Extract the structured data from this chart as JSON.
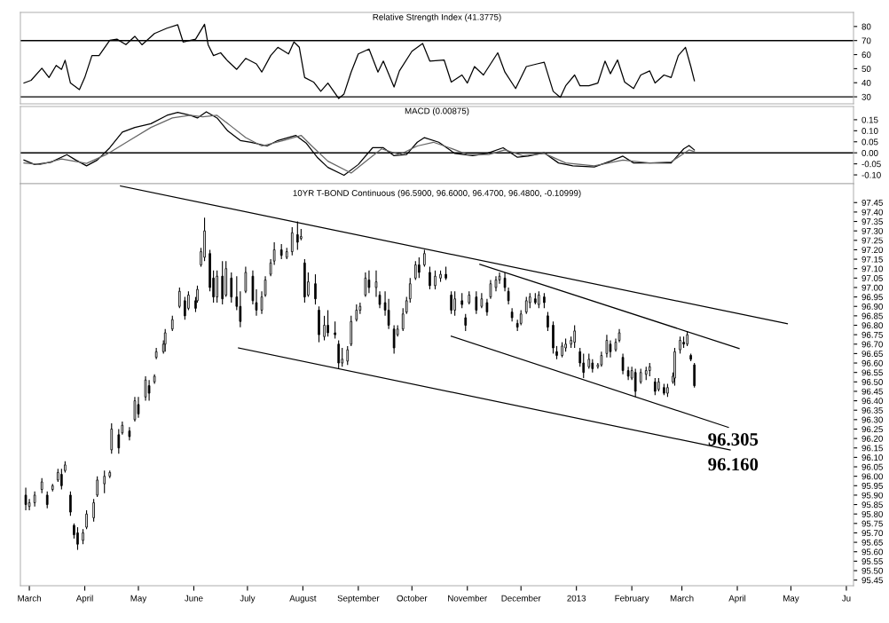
{
  "chart_data": [
    {
      "type": "line",
      "title": "Relative Strength Index (41.3775)",
      "tick_labels": "y",
      "xlim": [
        "2012-02-25",
        "2013-06-05"
      ],
      "ylim": [
        25,
        90
      ],
      "yticks": [
        30,
        40,
        50,
        60,
        70,
        80
      ],
      "ref_lines": [
        {
          "axis": "y",
          "value": 70,
          "color": "#000000"
        },
        {
          "axis": "y",
          "value": 30,
          "color": "#000000"
        }
      ],
      "x": [
        "2012-02-27",
        "2012-03-02",
        "2012-03-08",
        "2012-03-12",
        "2012-03-16",
        "2012-03-19",
        "2012-03-21",
        "2012-03-24",
        "2012-03-29",
        "2012-04-01",
        "2012-04-05",
        "2012-04-09",
        "2012-04-15",
        "2012-04-19",
        "2012-04-24",
        "2012-04-29",
        "2012-05-03",
        "2012-05-10",
        "2012-05-17",
        "2012-05-23",
        "2012-05-26",
        "2012-06-02",
        "2012-06-07",
        "2012-06-09",
        "2012-06-12",
        "2012-06-16",
        "2012-06-20",
        "2012-06-25",
        "2012-06-30",
        "2012-07-06",
        "2012-07-09",
        "2012-07-14",
        "2012-07-18",
        "2012-07-24",
        "2012-07-27",
        "2012-07-30",
        "2012-08-02",
        "2012-08-07",
        "2012-08-11",
        "2012-08-15",
        "2012-08-21",
        "2012-08-24",
        "2012-08-28",
        "2012-09-01",
        "2012-09-07",
        "2012-09-12",
        "2012-09-15",
        "2012-09-21",
        "2012-09-24",
        "2012-10-01",
        "2012-10-07",
        "2012-10-11",
        "2012-10-19",
        "2012-10-23",
        "2012-10-29",
        "2012-11-01",
        "2012-11-05",
        "2012-11-10",
        "2012-11-18",
        "2012-11-22",
        "2012-11-28",
        "2012-12-04",
        "2012-12-10",
        "2012-12-14",
        "2012-12-19",
        "2012-12-23",
        "2012-12-26",
        "2012-12-31",
        "2013-01-03",
        "2013-01-08",
        "2013-01-13",
        "2013-01-17",
        "2013-01-20",
        "2013-01-24",
        "2013-01-28",
        "2013-02-02",
        "2013-02-06",
        "2013-02-11",
        "2013-02-14",
        "2013-02-19",
        "2013-02-23",
        "2013-02-27",
        "2013-03-03",
        "2013-03-06",
        "2013-03-08"
      ],
      "series": [
        {
          "color": "#000000",
          "values": [
            39.8,
            41.7,
            50.3,
            43.7,
            52.3,
            49.5,
            56,
            39.8,
            35.1,
            43.7,
            59.3,
            59.3,
            70.2,
            71,
            67.1,
            73,
            67,
            75,
            78.8,
            81.2,
            69,
            71,
            81.6,
            67,
            59.3,
            61.3,
            55.4,
            49.5,
            57.3,
            53.4,
            47.6,
            59.3,
            65.2,
            60.5,
            69,
            65.2,
            43.7,
            40.5,
            33.9,
            39.8,
            28.8,
            32,
            47.6,
            60.5,
            64,
            47.6,
            55.4,
            37,
            48.4,
            62.4,
            67.9,
            55.4,
            56.2,
            40.5,
            45.5,
            39.8,
            51.5,
            45.5,
            61.3,
            47.6,
            35.9,
            51.5,
            53.4,
            54.6,
            33.9,
            29.6,
            37.8,
            45.5,
            37.8,
            37.8,
            39.8,
            55.4,
            46.4,
            56.2,
            40.5,
            35.9,
            45.5,
            48.4,
            39.8,
            45.5,
            43.7,
            59.3,
            65.2,
            51.5,
            41.4
          ]
        }
      ]
    },
    {
      "type": "line",
      "title": "MACD (0.00875)",
      "tick_labels": "y",
      "xlim": [
        "2012-02-25",
        "2013-06-05"
      ],
      "ylim": [
        -0.14,
        0.21
      ],
      "yticks": [
        {
          "value": -0.1,
          "label": "-0.10"
        },
        {
          "value": -0.05,
          "label": "-0.05"
        },
        {
          "value": 0,
          "label": "0.00"
        },
        {
          "value": 0.05,
          "label": "0.05"
        },
        {
          "value": 0.1,
          "label": "0.10"
        },
        {
          "value": 0.15,
          "label": "0.15"
        }
      ],
      "ref_lines": [
        {
          "axis": "y",
          "value": 0,
          "color": "#000000"
        }
      ],
      "series": [
        {
          "color": "#000000",
          "x": [
            "2012-02-27",
            "2012-03-04",
            "2012-03-13",
            "2012-03-22",
            "2012-03-27",
            "2012-04-02",
            "2012-04-08",
            "2012-04-15",
            "2012-04-22",
            "2012-04-29",
            "2012-05-08",
            "2012-05-17",
            "2012-05-23",
            "2012-05-30",
            "2012-06-03",
            "2012-06-08",
            "2012-06-14",
            "2012-06-20",
            "2012-06-27",
            "2012-07-03",
            "2012-07-12",
            "2012-07-18",
            "2012-07-28",
            "2012-08-03",
            "2012-08-09",
            "2012-08-15",
            "2012-08-24",
            "2012-09-01",
            "2012-09-09",
            "2012-09-15",
            "2012-09-21",
            "2012-09-28",
            "2012-10-04",
            "2012-10-08",
            "2012-10-16",
            "2012-10-25",
            "2012-11-04",
            "2012-11-12",
            "2012-11-21",
            "2012-11-29",
            "2012-12-05",
            "2012-12-14",
            "2012-12-22",
            "2012-12-30",
            "2013-01-11",
            "2013-01-20",
            "2013-01-27",
            "2013-02-02",
            "2013-02-11",
            "2013-02-23",
            "2013-03-02",
            "2013-03-05",
            "2013-03-08"
          ],
          "values": [
            -0.033,
            -0.053,
            -0.043,
            -0.008,
            -0.033,
            -0.059,
            -0.033,
            0.023,
            0.094,
            0.115,
            0.132,
            0.17,
            0.183,
            0.17,
            0.158,
            0.186,
            0.158,
            0.099,
            0.056,
            0.048,
            0.031,
            0.056,
            0.079,
            0.043,
            -0.02,
            -0.066,
            -0.102,
            -0.053,
            0.023,
            0.023,
            -0.013,
            -0.008,
            0.048,
            0.069,
            0.048,
            -0.003,
            -0.013,
            -0.003,
            0.023,
            -0.02,
            -0.015,
            0.0,
            -0.046,
            -0.059,
            -0.064,
            -0.038,
            -0.015,
            -0.046,
            -0.046,
            -0.046,
            0.018,
            0.033,
            0.013
          ]
        },
        {
          "color": "#666666",
          "x": [
            "2012-02-27",
            "2012-03-07",
            "2012-03-19",
            "2012-04-02",
            "2012-04-13",
            "2012-04-26",
            "2012-05-08",
            "2012-05-20",
            "2012-05-30",
            "2012-06-06",
            "2012-06-14",
            "2012-06-22",
            "2012-06-30",
            "2012-07-09",
            "2012-07-21",
            "2012-07-31",
            "2012-08-06",
            "2012-08-15",
            "2012-08-28",
            "2012-09-06",
            "2012-09-14",
            "2012-09-24",
            "2012-10-04",
            "2012-10-13",
            "2012-10-22",
            "2012-11-01",
            "2012-11-13",
            "2012-11-22",
            "2012-12-02",
            "2012-12-14",
            "2012-12-26",
            "2013-01-11",
            "2013-01-27",
            "2013-02-11",
            "2013-02-23",
            "2013-03-05",
            "2013-03-08"
          ],
          "values": [
            -0.046,
            -0.053,
            -0.028,
            -0.048,
            -0.008,
            0.056,
            0.115,
            0.158,
            0.17,
            0.163,
            0.17,
            0.12,
            0.069,
            0.031,
            0.056,
            0.079,
            0.031,
            -0.038,
            -0.092,
            -0.033,
            0.018,
            -0.008,
            0.031,
            0.048,
            0.023,
            -0.008,
            -0.008,
            0.013,
            -0.013,
            -0.003,
            -0.046,
            -0.059,
            -0.033,
            -0.046,
            -0.041,
            0.013,
            0.005
          ]
        }
      ]
    },
    {
      "type": "candlestick",
      "title": "10YR T-BOND Continuous (96.5900, 96.6000, 96.4700, 96.4800, -0.10999)",
      "color": "#000000",
      "xlim": [
        "2012-02-25",
        "2013-06-05"
      ],
      "ylim": [
        95.42,
        97.55
      ],
      "xticks": [
        {
          "value": "2012-03-01",
          "label": "March"
        },
        {
          "value": "2012-04-01",
          "label": "April"
        },
        {
          "value": "2012-05-01",
          "label": "May"
        },
        {
          "value": "2012-06-01",
          "label": "June"
        },
        {
          "value": "2012-07-01",
          "label": "July"
        },
        {
          "value": "2012-08-01",
          "label": "August"
        },
        {
          "value": "2012-09-01",
          "label": "September"
        },
        {
          "value": "2012-10-01",
          "label": "October"
        },
        {
          "value": "2012-11-01",
          "label": "November"
        },
        {
          "value": "2012-12-01",
          "label": "December"
        },
        {
          "value": "2013-01-01",
          "label": "2013"
        },
        {
          "value": "2013-02-01",
          "label": "February"
        },
        {
          "value": "2013-03-01",
          "label": "March"
        },
        {
          "value": "2013-04-01",
          "label": "April"
        },
        {
          "value": "2013-05-01",
          "label": "May"
        },
        {
          "value": "2013-06-01",
          "label": "Ju"
        }
      ],
      "yticks": [
        95.45,
        {
          "value": 95.5,
          "label": "95.50"
        },
        95.55,
        {
          "value": 95.6,
          "label": "95.60"
        },
        95.65,
        {
          "value": 95.7,
          "label": "95.70"
        },
        95.75,
        {
          "value": 95.8,
          "label": "95.80"
        },
        95.85,
        {
          "value": 95.9,
          "label": "95.90"
        },
        95.95,
        {
          "value": 96.0,
          "label": "96.00"
        },
        96.05,
        {
          "value": 96.1,
          "label": "96.10"
        },
        96.15,
        {
          "value": 96.2,
          "label": "96.20"
        },
        96.25,
        {
          "value": 96.3,
          "label": "96.30"
        },
        96.35,
        {
          "value": 96.4,
          "label": "96.40"
        },
        96.45,
        {
          "value": 96.5,
          "label": "96.50"
        },
        96.55,
        {
          "value": 96.6,
          "label": "96.60"
        },
        96.65,
        {
          "value": 96.7,
          "label": "96.70"
        },
        96.75,
        {
          "value": 96.8,
          "label": "96.80"
        },
        96.85,
        {
          "value": 96.9,
          "label": "96.90"
        },
        96.95,
        {
          "value": 97.0,
          "label": "97.00"
        },
        97.05,
        {
          "value": 97.1,
          "label": "97.10"
        },
        97.15,
        {
          "value": 97.2,
          "label": "97.20"
        },
        97.25,
        {
          "value": 97.3,
          "label": "97.30"
        },
        97.35,
        {
          "value": 97.4,
          "label": "97.40"
        },
        97.45
      ],
      "annotations": [
        "96.305",
        "96.160"
      ],
      "x": [
        "2012-02-28",
        "2012-03-01",
        "2012-03-04",
        "2012-03-08",
        "2012-03-11",
        "2012-03-14",
        "2012-03-17",
        "2012-03-19",
        "2012-03-21",
        "2012-03-24",
        "2012-03-26",
        "2012-03-28",
        "2012-03-31",
        "2012-04-02",
        "2012-04-06",
        "2012-04-08",
        "2012-04-12",
        "2012-04-15",
        "2012-04-16",
        "2012-04-20",
        "2012-04-22",
        "2012-04-26",
        "2012-04-29",
        "2012-05-01",
        "2012-05-05",
        "2012-05-07",
        "2012-05-10",
        "2012-05-11",
        "2012-05-15",
        "2012-05-16",
        "2012-05-20",
        "2012-05-24",
        "2012-05-27",
        "2012-05-29",
        "2012-06-02",
        "2012-06-03",
        "2012-06-05",
        "2012-06-07",
        "2012-06-10",
        "2012-06-12",
        "2012-06-14",
        "2012-06-17",
        "2012-06-19",
        "2012-06-22",
        "2012-06-25",
        "2012-06-27",
        "2012-06-30",
        "2012-07-04",
        "2012-07-06",
        "2012-07-09",
        "2012-07-11",
        "2012-07-14",
        "2012-07-16",
        "2012-07-20",
        "2012-07-23",
        "2012-07-26",
        "2012-07-29",
        "2012-07-31",
        "2012-08-02",
        "2012-08-04",
        "2012-08-08",
        "2012-08-10",
        "2012-08-13",
        "2012-08-15",
        "2012-08-19",
        "2012-08-21",
        "2012-08-23",
        "2012-08-26",
        "2012-08-28",
        "2012-08-31",
        "2012-09-02",
        "2012-09-05",
        "2012-09-07",
        "2012-09-11",
        "2012-09-13",
        "2012-09-16",
        "2012-09-18",
        "2012-09-21",
        "2012-09-23",
        "2012-09-26",
        "2012-09-28",
        "2012-09-30",
        "2012-10-03",
        "2012-10-05",
        "2012-10-08",
        "2012-10-11",
        "2012-10-14",
        "2012-10-17",
        "2012-10-20",
        "2012-10-23",
        "2012-10-25",
        "2012-10-29",
        "2012-10-31",
        "2012-11-02",
        "2012-11-06",
        "2012-11-09",
        "2012-11-12",
        "2012-11-14",
        "2012-11-17",
        "2012-11-19",
        "2012-11-22",
        "2012-11-24",
        "2012-11-26",
        "2012-11-29",
        "2012-12-01",
        "2012-12-04",
        "2012-12-06",
        "2012-12-09",
        "2012-12-11",
        "2012-12-14",
        "2012-12-16",
        "2012-12-19",
        "2012-12-21",
        "2012-12-24",
        "2012-12-26",
        "2012-12-29",
        "2012-12-31",
        "2013-01-03",
        "2013-01-05",
        "2013-01-08",
        "2013-01-10",
        "2013-01-13",
        "2013-01-15",
        "2013-01-18",
        "2013-01-20",
        "2013-01-23",
        "2013-01-25",
        "2013-01-27",
        "2013-01-30",
        "2013-02-01",
        "2013-02-03",
        "2013-02-06",
        "2013-02-09",
        "2013-02-11",
        "2013-02-14",
        "2013-02-16",
        "2013-02-19",
        "2013-02-21",
        "2013-02-24",
        "2013-02-25",
        "2013-02-28",
        "2013-03-02",
        "2013-03-04",
        "2013-03-06",
        "2013-03-08"
      ],
      "ohlc": [
        [
          95.9,
          95.94,
          95.82,
          95.85
        ],
        [
          95.84,
          95.88,
          95.82,
          95.86
        ],
        [
          95.86,
          95.92,
          95.84,
          95.9
        ],
        [
          95.93,
          95.99,
          95.91,
          95.97
        ],
        [
          95.9,
          95.92,
          95.83,
          95.85
        ],
        [
          95.93,
          95.96,
          95.92,
          95.95
        ],
        [
          95.98,
          96.04,
          95.97,
          96.02
        ],
        [
          96.01,
          96.04,
          95.93,
          95.95
        ],
        [
          96.03,
          96.08,
          96.02,
          96.06
        ],
        [
          95.9,
          95.92,
          95.79,
          95.81
        ],
        [
          95.74,
          95.75,
          95.67,
          95.69
        ],
        [
          95.7,
          95.73,
          95.61,
          95.64
        ],
        [
          95.66,
          95.72,
          95.64,
          95.7
        ],
        [
          95.73,
          95.82,
          95.72,
          95.8
        ],
        [
          95.78,
          95.88,
          95.76,
          95.86
        ],
        [
          95.9,
          96.0,
          95.89,
          95.98
        ],
        [
          95.96,
          96.03,
          95.91,
          96.0
        ],
        [
          96.0,
          96.03,
          95.99,
          96.02
        ],
        [
          96.14,
          96.28,
          96.12,
          96.25
        ],
        [
          96.22,
          96.25,
          96.12,
          96.15
        ],
        [
          96.23,
          96.29,
          96.22,
          96.27
        ],
        [
          96.24,
          96.26,
          96.19,
          96.21
        ],
        [
          96.3,
          96.42,
          96.29,
          96.4
        ],
        [
          96.38,
          96.42,
          96.31,
          96.33
        ],
        [
          96.42,
          96.53,
          96.4,
          96.51
        ],
        [
          96.48,
          96.51,
          96.4,
          96.44
        ],
        [
          96.5,
          96.54,
          96.49,
          96.53
        ],
        [
          96.63,
          96.68,
          96.62,
          96.66
        ],
        [
          96.66,
          96.72,
          96.65,
          96.7
        ],
        [
          96.7,
          96.78,
          96.66,
          96.76
        ],
        [
          96.78,
          96.85,
          96.77,
          96.83
        ],
        [
          96.9,
          97.0,
          96.89,
          96.98
        ],
        [
          96.93,
          96.95,
          96.83,
          96.85
        ],
        [
          96.89,
          96.98,
          96.88,
          96.96
        ],
        [
          96.93,
          96.95,
          96.87,
          96.89
        ],
        [
          96.93,
          97.01,
          96.92,
          96.99
        ],
        [
          97.12,
          97.21,
          97.11,
          97.19
        ],
        [
          97.16,
          97.37,
          97.14,
          97.3
        ],
        [
          97.18,
          97.2,
          96.98,
          97.0
        ],
        [
          97.05,
          97.09,
          96.92,
          96.95
        ],
        [
          96.95,
          97.09,
          96.92,
          97.06
        ],
        [
          97.06,
          97.14,
          96.91,
          96.94
        ],
        [
          96.96,
          97.14,
          96.95,
          97.1
        ],
        [
          97.05,
          97.08,
          96.92,
          96.95
        ],
        [
          96.95,
          97.06,
          96.88,
          96.9
        ],
        [
          96.9,
          96.98,
          96.79,
          96.82
        ],
        [
          96.98,
          97.11,
          96.97,
          97.08
        ],
        [
          97.06,
          97.09,
          96.91,
          96.93
        ],
        [
          96.92,
          96.99,
          96.85,
          96.88
        ],
        [
          96.88,
          96.98,
          96.86,
          96.95
        ],
        [
          96.96,
          97.06,
          96.95,
          97.04
        ],
        [
          97.07,
          97.15,
          97.06,
          97.13
        ],
        [
          97.14,
          97.24,
          97.12,
          97.2
        ],
        [
          97.2,
          97.23,
          97.15,
          97.17
        ],
        [
          97.16,
          97.21,
          97.15,
          97.19
        ],
        [
          97.19,
          97.32,
          97.17,
          97.29
        ],
        [
          97.28,
          97.35,
          97.2,
          97.24
        ],
        [
          97.26,
          97.31,
          97.25,
          97.27
        ],
        [
          97.13,
          97.15,
          96.92,
          96.95
        ],
        [
          96.96,
          97.08,
          96.95,
          97.03
        ],
        [
          97.02,
          97.07,
          96.91,
          96.94
        ],
        [
          96.88,
          96.9,
          96.71,
          96.75
        ],
        [
          96.74,
          96.85,
          96.72,
          96.8
        ],
        [
          96.8,
          96.88,
          96.74,
          96.76
        ],
        [
          96.76,
          96.82,
          96.73,
          96.75
        ],
        [
          96.7,
          96.72,
          96.57,
          96.6
        ],
        [
          96.6,
          96.68,
          96.58,
          96.62
        ],
        [
          96.61,
          96.69,
          96.59,
          96.67
        ],
        [
          96.7,
          96.85,
          96.69,
          96.82
        ],
        [
          96.83,
          96.91,
          96.82,
          96.88
        ],
        [
          96.88,
          96.92,
          96.86,
          96.9
        ],
        [
          96.96,
          97.08,
          96.95,
          97.05
        ],
        [
          97.04,
          97.09,
          96.97,
          97.0
        ],
        [
          97.0,
          97.09,
          96.95,
          97.03
        ],
        [
          96.96,
          96.98,
          96.89,
          96.91
        ],
        [
          96.92,
          96.98,
          96.85,
          96.88
        ],
        [
          96.88,
          96.94,
          96.78,
          96.8
        ],
        [
          96.78,
          96.8,
          96.65,
          96.68
        ],
        [
          96.75,
          96.8,
          96.74,
          96.78
        ],
        [
          96.78,
          96.89,
          96.77,
          96.86
        ],
        [
          96.87,
          96.95,
          96.86,
          96.93
        ],
        [
          96.94,
          97.05,
          96.92,
          97.02
        ],
        [
          97.05,
          97.14,
          97.04,
          97.12
        ],
        [
          97.12,
          97.16,
          97.05,
          97.08
        ],
        [
          97.12,
          97.2,
          97.11,
          97.18
        ],
        [
          97.08,
          97.11,
          96.99,
          97.01
        ],
        [
          97.01,
          97.09,
          96.99,
          97.06
        ],
        [
          97.05,
          97.09,
          97.03,
          97.07
        ],
        [
          97.07,
          97.11,
          97.04,
          97.05
        ],
        [
          96.96,
          96.98,
          96.86,
          96.88
        ],
        [
          96.88,
          96.98,
          96.85,
          96.94
        ],
        [
          96.93,
          96.97,
          96.89,
          96.91
        ],
        [
          96.84,
          96.86,
          96.77,
          96.8
        ],
        [
          96.92,
          96.98,
          96.91,
          96.96
        ],
        [
          96.95,
          96.98,
          96.86,
          96.88
        ],
        [
          96.9,
          96.97,
          96.89,
          96.94
        ],
        [
          96.92,
          96.94,
          96.85,
          96.87
        ],
        [
          96.95,
          97.04,
          96.94,
          97.02
        ],
        [
          97.0,
          97.06,
          96.98,
          97.04
        ],
        [
          97.04,
          97.08,
          97.02,
          97.06
        ],
        [
          97.05,
          97.08,
          96.98,
          97.0
        ],
        [
          96.98,
          97.0,
          96.91,
          96.93
        ],
        [
          96.87,
          96.89,
          96.82,
          96.84
        ],
        [
          96.81,
          96.83,
          96.77,
          96.79
        ],
        [
          96.81,
          96.88,
          96.8,
          96.86
        ],
        [
          96.87,
          96.95,
          96.86,
          96.93
        ],
        [
          96.92,
          96.97,
          96.89,
          96.95
        ],
        [
          96.94,
          96.97,
          96.91,
          96.92
        ],
        [
          96.91,
          96.98,
          96.89,
          96.96
        ],
        [
          96.95,
          96.97,
          96.89,
          96.92
        ],
        [
          96.85,
          96.87,
          96.77,
          96.79
        ],
        [
          96.8,
          96.82,
          96.65,
          96.68
        ],
        [
          96.66,
          96.69,
          96.62,
          96.64
        ],
        [
          96.64,
          96.71,
          96.63,
          96.69
        ],
        [
          96.68,
          96.73,
          96.66,
          96.7
        ],
        [
          96.7,
          96.74,
          96.68,
          96.72
        ],
        [
          96.71,
          96.8,
          96.68,
          96.77
        ],
        [
          96.66,
          96.68,
          96.58,
          96.6
        ],
        [
          96.6,
          96.65,
          96.52,
          96.55
        ],
        [
          96.58,
          96.65,
          96.57,
          96.62
        ],
        [
          96.6,
          96.62,
          96.55,
          96.57
        ],
        [
          96.58,
          96.6,
          96.57,
          96.59
        ],
        [
          96.59,
          96.66,
          96.58,
          96.64
        ],
        [
          96.65,
          96.75,
          96.63,
          96.72
        ],
        [
          96.7,
          96.72,
          96.63,
          96.66
        ],
        [
          96.67,
          96.73,
          96.66,
          96.71
        ],
        [
          96.72,
          96.78,
          96.71,
          96.76
        ],
        [
          96.63,
          96.65,
          96.54,
          96.56
        ],
        [
          96.56,
          96.58,
          96.51,
          96.53
        ],
        [
          96.52,
          96.58,
          96.51,
          96.56
        ],
        [
          96.55,
          96.57,
          96.42,
          96.45
        ],
        [
          96.5,
          96.57,
          96.49,
          96.55
        ],
        [
          96.54,
          96.58,
          96.51,
          96.56
        ],
        [
          96.56,
          96.6,
          96.53,
          96.58
        ],
        [
          96.5,
          96.52,
          96.43,
          96.45
        ],
        [
          96.46,
          96.52,
          96.45,
          96.5
        ],
        [
          96.47,
          96.49,
          96.43,
          96.44
        ],
        [
          96.44,
          96.49,
          96.42,
          96.47
        ],
        [
          96.5,
          96.55,
          96.49,
          96.53
        ],
        [
          96.52,
          96.68,
          96.48,
          96.66
        ],
        [
          96.67,
          96.74,
          96.65,
          96.72
        ],
        [
          96.71,
          96.74,
          96.68,
          96.7
        ],
        [
          96.7,
          96.77,
          96.69,
          96.75
        ],
        [
          96.64,
          96.65,
          96.61,
          96.62
        ],
        [
          96.59,
          96.6,
          96.47,
          96.48
        ]
      ],
      "series": [
        {
          "type": "line",
          "color": "#000000",
          "x": [
            "2012-04-21",
            "2013-04-29"
          ],
          "values": [
            97.538,
            96.808
          ]
        },
        {
          "type": "line",
          "color": "#000000",
          "x": [
            "2012-11-08",
            "2013-04-02"
          ],
          "values": [
            97.123,
            96.677
          ]
        },
        {
          "type": "line",
          "color": "#000000",
          "x": [
            "2012-10-23",
            "2013-03-27"
          ],
          "values": [
            96.742,
            96.259
          ]
        },
        {
          "type": "line",
          "color": "#000000",
          "x": [
            "2012-06-26",
            "2013-03-28"
          ],
          "values": [
            96.68,
            96.139
          ]
        }
      ]
    }
  ]
}
